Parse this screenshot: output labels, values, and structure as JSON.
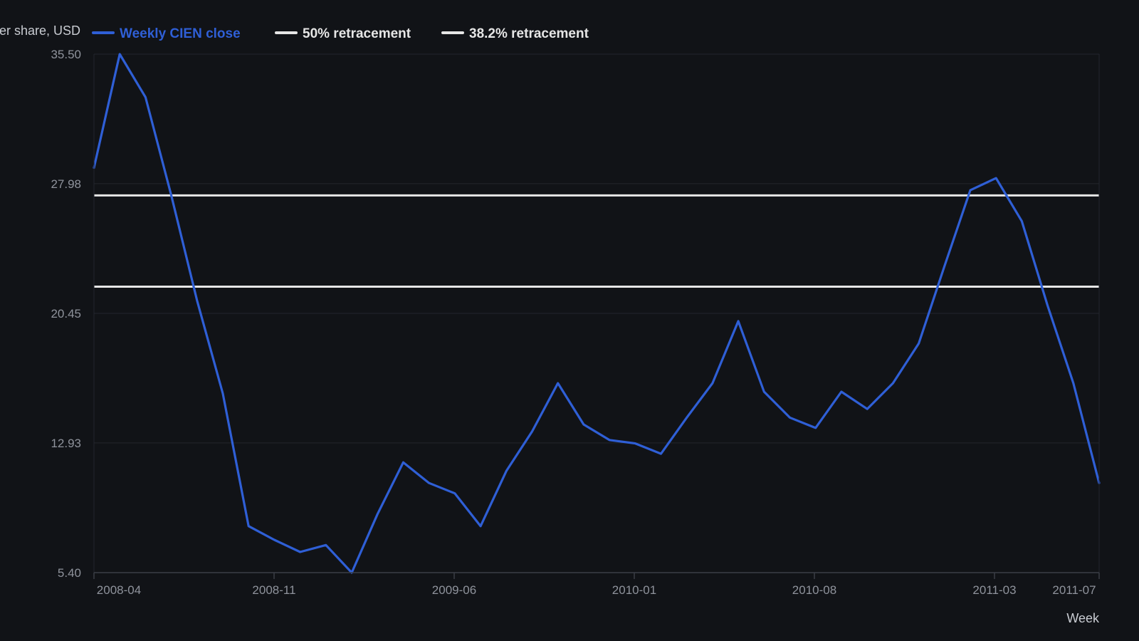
{
  "chart_data": {
    "type": "line",
    "title": "",
    "ylabel": "Price per share, USD",
    "xlabel": "Week",
    "ylim": [
      5.4,
      35.5
    ],
    "y_ticks": [
      "35.50",
      "27.98",
      "20.45",
      "12.93",
      "5.40"
    ],
    "x_ticks": [
      "2008-04",
      "2008-11",
      "2009-06",
      "2010-01",
      "2010-08",
      "2011-03",
      "2011-07"
    ],
    "grid": true,
    "legend_position": "top",
    "series": [
      {
        "name": "Weekly CIEN close",
        "color": "#2f5fd6",
        "values": [
          28.9,
          35.5,
          33.0,
          27.3,
          21.2,
          15.8,
          8.1,
          7.3,
          6.6,
          7.0,
          5.4,
          8.8,
          11.8,
          10.6,
          10.0,
          8.1,
          11.3,
          13.6,
          16.4,
          14.0,
          13.1,
          12.9,
          12.3,
          14.4,
          16.4,
          20.0,
          15.9,
          14.4,
          13.8,
          15.9,
          14.9,
          16.4,
          18.7,
          23.2,
          27.6,
          28.3,
          25.8,
          20.9,
          16.4,
          10.6
        ]
      },
      {
        "name": "50% retracement",
        "color": "#e6e6e6",
        "constant": 27.3
      },
      {
        "name": "38.2% retracement",
        "color": "#e6e6e6",
        "constant": 22.0
      }
    ]
  },
  "colors": {
    "background": "#111317",
    "grid": "#23262d",
    "axis": "#3a3e46"
  }
}
